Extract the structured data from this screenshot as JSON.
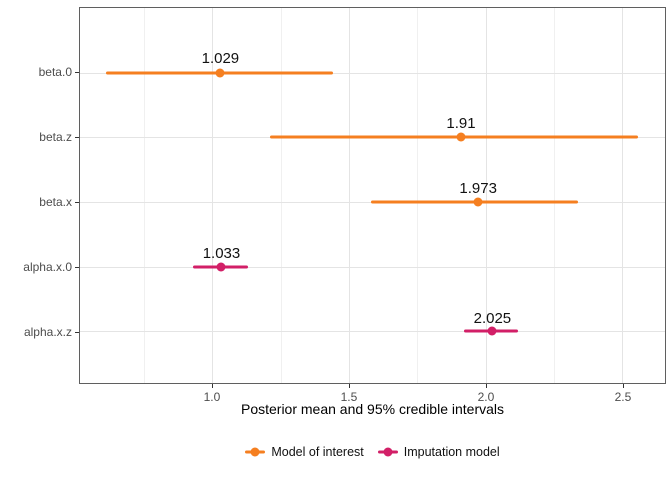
{
  "chart_data": {
    "type": "scatter",
    "subtype": "pointrange",
    "orientation": "horizontal",
    "title": "",
    "xlabel": "Posterior mean and 95% credible intervals",
    "ylabel": "",
    "categories": [
      "beta.0",
      "beta.z",
      "beta.x",
      "alpha.x.0",
      "alpha.x.z"
    ],
    "xlim": [
      0.515,
      2.657
    ],
    "x_ticks": [
      {
        "value": 1.0,
        "label": "1.0"
      },
      {
        "value": 1.5,
        "label": "1.5"
      },
      {
        "value": 2.0,
        "label": "2.0"
      },
      {
        "value": 2.5,
        "label": "2.5"
      }
    ],
    "x_minor_ticks": [
      0.75,
      1.25,
      1.75,
      2.25
    ],
    "grid": true,
    "legend_position": "bottom",
    "series": [
      {
        "name": "Model of interest",
        "color": "#F57F20",
        "points": [
          {
            "category": "beta.0",
            "mean": 1.029,
            "lower": 0.61,
            "upper": 1.44,
            "label": "1.029"
          },
          {
            "category": "beta.z",
            "mean": 1.91,
            "lower": 1.21,
            "upper": 2.56,
            "label": "1.91"
          },
          {
            "category": "beta.x",
            "mean": 1.973,
            "lower": 1.58,
            "upper": 2.34,
            "label": "1.973"
          }
        ]
      },
      {
        "name": "Imputation model",
        "color": "#D21F67",
        "points": [
          {
            "category": "alpha.x.0",
            "mean": 1.033,
            "lower": 0.93,
            "upper": 1.13,
            "label": "1.033"
          },
          {
            "category": "alpha.x.z",
            "mean": 2.025,
            "lower": 1.92,
            "upper": 2.12,
            "label": "2.025"
          }
        ]
      }
    ],
    "colors": {
      "panel_background": "#FFFFFF",
      "panel_border": "#5F5F5F",
      "grid_major": "#E4E4E4",
      "grid_minor": "#F0F0F0",
      "axis_text": "#4D4D4D",
      "tick_mark": "#333333",
      "value_label_text": "#111111"
    }
  }
}
